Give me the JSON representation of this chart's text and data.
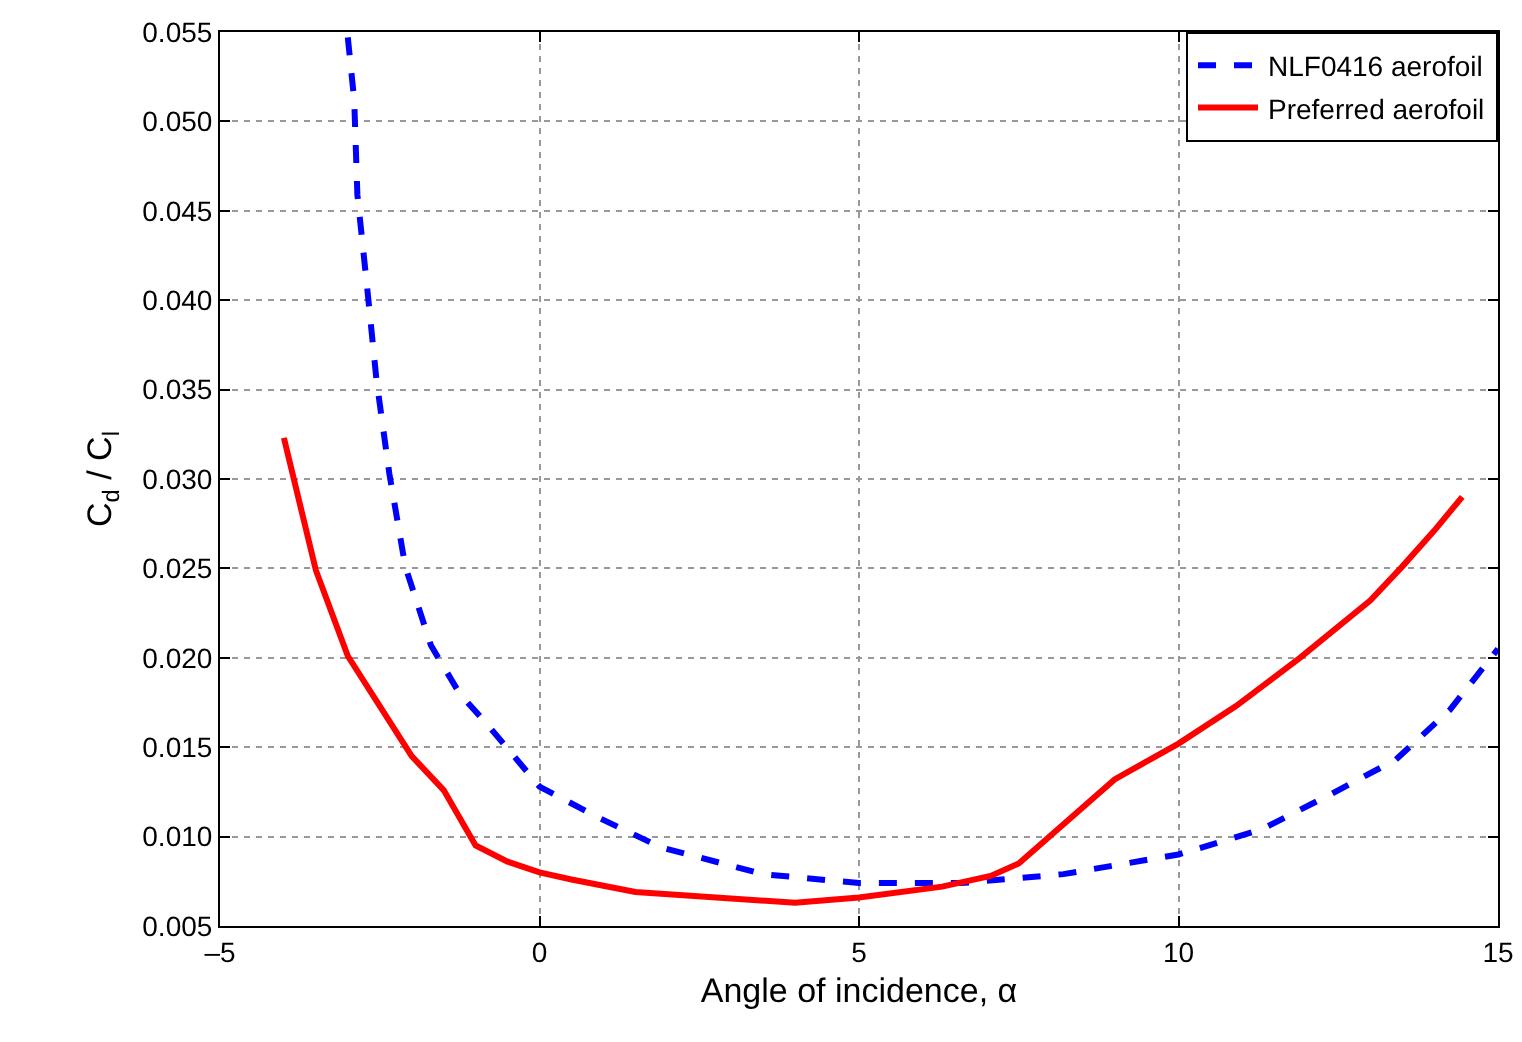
{
  "chart_data": {
    "type": "line",
    "xlabel": "Angle of incidence, α",
    "ylabel": "C$_{d}$ / C$_{l}$",
    "xlim": [
      -5,
      15
    ],
    "xticks": [
      {
        "value": -5,
        "label": "–5"
      },
      0,
      5,
      10,
      15
    ],
    "ylim": [
      0.005,
      0.055
    ],
    "yticks": [
      {
        "value": 0.005,
        "label": "0.005"
      },
      {
        "value": 0.01,
        "label": "0.010"
      },
      {
        "value": 0.015,
        "label": "0.015"
      },
      {
        "value": 0.02,
        "label": "0.020"
      },
      {
        "value": 0.025,
        "label": "0.025"
      },
      {
        "value": 0.03,
        "label": "0.030"
      },
      {
        "value": 0.035,
        "label": "0.035"
      },
      {
        "value": 0.04,
        "label": "0.040"
      },
      {
        "value": 0.045,
        "label": "0.045"
      },
      {
        "value": 0.05,
        "label": "0.050"
      },
      {
        "value": 0.055,
        "label": "0.055"
      }
    ],
    "grid": true,
    "legend": "top right",
    "marker": "none",
    "series": [
      {
        "name": "NLF0416 aerofoil",
        "color": "#0000ff",
        "line_style": "dashed",
        "x": [
          -3.0,
          -2.9,
          -2.85,
          -2.7,
          -2.55,
          -2.35,
          -2.1,
          -1.7,
          -1.25,
          -0.8,
          0,
          0.9,
          1.9,
          3.5,
          5,
          6.6,
          8.2,
          10,
          11.3,
          12.4,
          13.4,
          14.25,
          15
        ],
        "values": [
          0.0547,
          0.0512,
          0.0459,
          0.0408,
          0.0355,
          0.0303,
          0.0251,
          0.0207,
          0.018,
          0.0162,
          0.0128,
          0.0111,
          0.0094,
          0.0079,
          0.0074,
          0.0074,
          0.0079,
          0.009,
          0.0104,
          0.0124,
          0.0143,
          0.0171,
          0.0205
        ]
      },
      {
        "name": "Preferred aerofoil",
        "color": "#ff0000",
        "line_style": "solid",
        "x": [
          -4,
          -3.5,
          -3,
          -2,
          -1.5,
          -1,
          -0.5,
          0,
          0.5,
          1.5,
          4,
          5,
          6.3,
          7.06,
          7.5,
          9,
          10,
          10.9,
          11.9,
          13,
          13.5,
          14,
          14.44
        ],
        "values": [
          0.0323,
          0.0249,
          0.0201,
          0.0145,
          0.0126,
          0.0095,
          0.0086,
          0.008,
          0.0076,
          0.0069,
          0.0063,
          0.0066,
          0.0072,
          0.0078,
          0.0085,
          0.0132,
          0.0152,
          0.0173,
          0.02,
          0.0232,
          0.0251,
          0.0271,
          0.029
        ]
      }
    ]
  }
}
